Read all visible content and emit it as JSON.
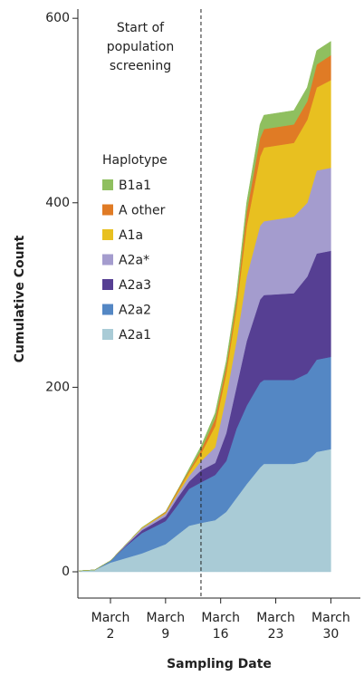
{
  "chart_data": {
    "type": "stacked-area",
    "x_label": "Sampling Date",
    "y_label": "Cumulative Count",
    "x": [
      -2,
      0,
      2,
      4,
      6,
      9,
      10.5,
      12,
      13.5,
      15.3,
      16.7,
      18,
      19.3,
      21,
      21.5,
      25.3,
      27,
      28.2,
      30
    ],
    "series": [
      {
        "name": "A2a1",
        "color": "#a9cbd6",
        "values": [
          1,
          2,
          10,
          15,
          20,
          30,
          40,
          50,
          53,
          56,
          65,
          80,
          95,
          113,
          117,
          117,
          120,
          130,
          133
        ]
      },
      {
        "name": "A2a2",
        "color": "#5487c4",
        "values": [
          0,
          0,
          2,
          13,
          22,
          25,
          32,
          40,
          44,
          49,
          55,
          75,
          85,
          92,
          91,
          91,
          95,
          100,
          100
        ]
      },
      {
        "name": "A2a3",
        "color": "#563f93",
        "values": [
          0,
          0,
          0,
          1,
          3,
          5,
          8,
          8,
          13,
          13,
          30,
          45,
          70,
          90,
          92,
          94,
          105,
          115,
          115
        ]
      },
      {
        "name": "A2a*",
        "color": "#a49cce",
        "values": [
          0,
          0,
          0,
          1,
          2,
          3,
          4,
          6,
          10,
          17,
          40,
          50,
          70,
          80,
          80,
          83,
          80,
          90,
          90
        ]
      },
      {
        "name": "A1a",
        "color": "#e8c020",
        "values": [
          0,
          0,
          0,
          0,
          1,
          1,
          2,
          4,
          8,
          23,
          25,
          35,
          55,
          75,
          80,
          80,
          90,
          90,
          95
        ]
      },
      {
        "name": "A other",
        "color": "#e07b25",
        "values": [
          0,
          0,
          0,
          0,
          0,
          1,
          2,
          2,
          4,
          8,
          7,
          7,
          15,
          20,
          20,
          20,
          20,
          25,
          27
        ]
      },
      {
        "name": "B1a1",
        "color": "#8fbf5f",
        "values": [
          0,
          0,
          0,
          0,
          0,
          0,
          0,
          2,
          4,
          6,
          6,
          8,
          10,
          15,
          15,
          15,
          15,
          15,
          15
        ]
      }
    ],
    "legend_title": "Haplotype",
    "xlim": [
      -2.14,
      33.75
    ],
    "xticks": [
      {
        "value": 2,
        "label": "March 2"
      },
      {
        "value": 9,
        "label": "March 9"
      },
      {
        "value": 16,
        "label": "March 16"
      },
      {
        "value": 23,
        "label": "March 23"
      },
      {
        "value": 30,
        "label": "March 30"
      }
    ],
    "ylim": [
      -28.5,
      610
    ],
    "yticks": [
      0,
      200,
      400,
      600
    ],
    "vline": {
      "x": 13.5,
      "text": [
        "Start of",
        "population",
        "screening"
      ]
    }
  }
}
